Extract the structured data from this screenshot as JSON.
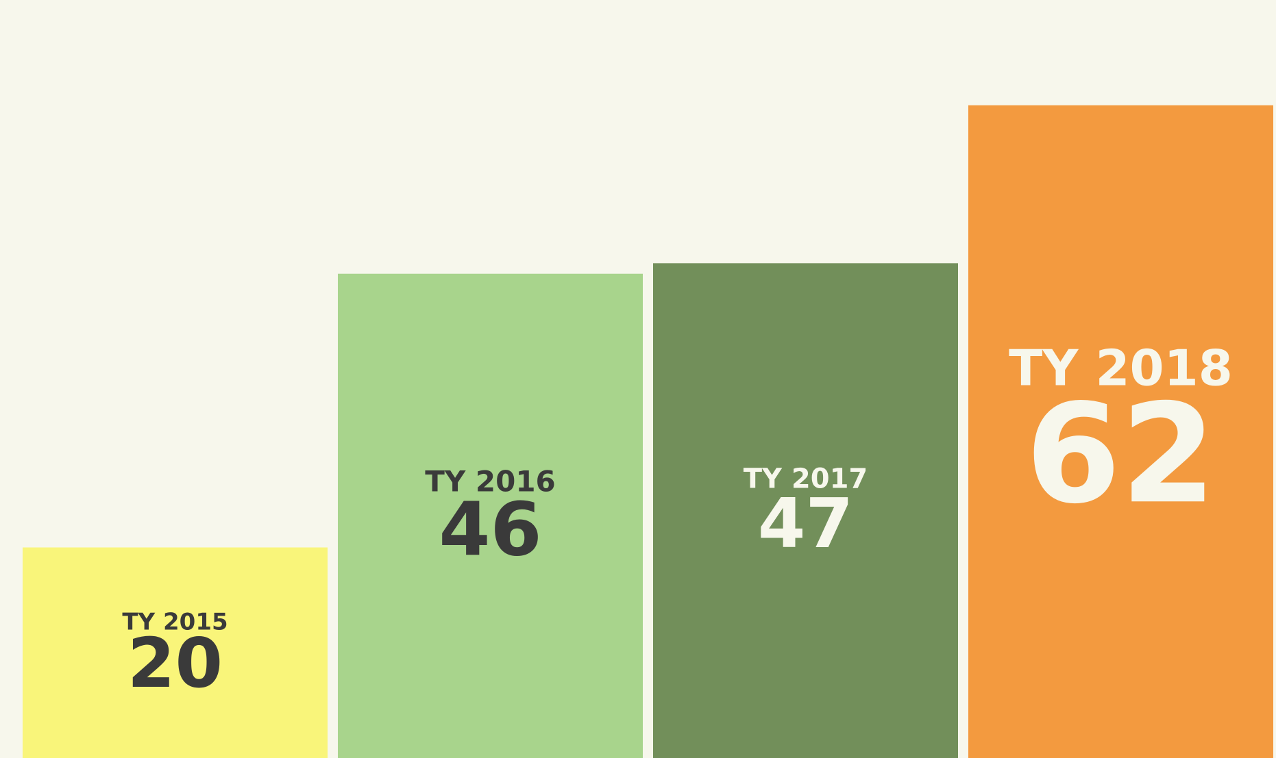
{
  "chart_data": {
    "type": "bar",
    "categories": [
      "TY 2015",
      "TY 2016",
      "TY 2017",
      "TY 2018"
    ],
    "values": [
      20,
      46,
      47,
      62
    ],
    "colors": [
      "#f9f57a",
      "#a8d48c",
      "#728f5a",
      "#f39a3f"
    ],
    "label_colors": [
      "#3a3a3a",
      "#3a3a3a",
      "#f7f7ec",
      "#f7f7ec"
    ],
    "ylim": [
      0,
      72
    ]
  }
}
